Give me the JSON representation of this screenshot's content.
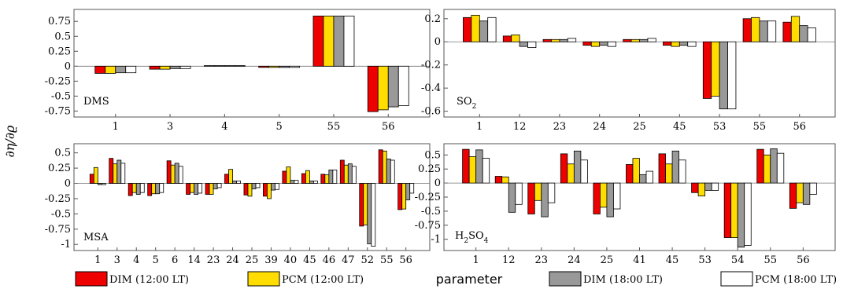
{
  "figure": {
    "ylabel": "∂η/∂ϱ",
    "xlabel": "parameter",
    "legend": [
      {
        "label": "DIM (12:00 LT)",
        "color": "#ee0000"
      },
      {
        "label": "PCM (12:00 LT)",
        "color": "#ffdd00"
      },
      {
        "label": "DIM (18:00 LT)",
        "color": "#999999"
      },
      {
        "label": "PCM (18:00 LT)",
        "color": "#ffffff"
      }
    ]
  },
  "chart_data": [
    {
      "type": "bar",
      "panel_label": "DMS",
      "categories": [
        "1",
        "3",
        "4",
        "5",
        "55",
        "56"
      ],
      "ylim": [
        -0.85,
        0.95
      ],
      "yticks": [
        -0.75,
        -0.5,
        -0.25,
        0,
        0.25,
        0.5,
        0.75
      ],
      "ytick_labels": [
        "-0.75",
        "-0.5",
        "-0.25",
        "0",
        "0.25",
        "0.5",
        "0.75"
      ],
      "series": [
        {
          "name": "DIM (12:00 LT)",
          "values": [
            -0.12,
            -0.05,
            0.01,
            -0.02,
            0.84,
            -0.76
          ]
        },
        {
          "name": "PCM (12:00 LT)",
          "values": [
            -0.12,
            -0.05,
            0.01,
            -0.02,
            0.84,
            -0.73
          ]
        },
        {
          "name": "DIM (18:00 LT)",
          "values": [
            -0.11,
            -0.04,
            0.01,
            -0.02,
            0.84,
            -0.68
          ]
        },
        {
          "name": "PCM (18:00 LT)",
          "values": [
            -0.11,
            -0.04,
            0.01,
            -0.02,
            0.84,
            -0.66
          ]
        }
      ]
    },
    {
      "type": "bar",
      "panel_label": "SO2",
      "categories": [
        "1",
        "12",
        "23",
        "24",
        "25",
        "45",
        "53",
        "55",
        "56"
      ],
      "ylim": [
        -0.65,
        0.28
      ],
      "yticks": [
        -0.6,
        -0.4,
        -0.2,
        0,
        0.2
      ],
      "ytick_labels": [
        "-0.6",
        "-0.4",
        "-0.2",
        "0",
        "0.2"
      ],
      "series": [
        {
          "name": "DIM (12:00 LT)",
          "values": [
            0.21,
            0.05,
            0.02,
            -0.03,
            0.02,
            -0.03,
            -0.49,
            0.2,
            0.17
          ]
        },
        {
          "name": "PCM (12:00 LT)",
          "values": [
            0.23,
            0.06,
            0.02,
            -0.04,
            0.02,
            -0.04,
            -0.47,
            0.21,
            0.22
          ]
        },
        {
          "name": "DIM (18:00 LT)",
          "values": [
            0.18,
            -0.04,
            0.02,
            -0.03,
            0.02,
            -0.03,
            -0.58,
            0.18,
            0.14
          ]
        },
        {
          "name": "PCM (18:00 LT)",
          "values": [
            0.21,
            -0.05,
            0.03,
            -0.04,
            0.03,
            -0.04,
            -0.58,
            0.18,
            0.12
          ]
        }
      ]
    },
    {
      "type": "bar",
      "panel_label": "MSA",
      "categories": [
        "1",
        "3",
        "4",
        "5",
        "6",
        "14",
        "23",
        "24",
        "25",
        "39",
        "40",
        "45",
        "46",
        "47",
        "52",
        "55",
        "56"
      ],
      "ylim": [
        -1.1,
        0.65
      ],
      "yticks": [
        -1,
        -0.75,
        -0.5,
        -0.25,
        0,
        0.25,
        0.5
      ],
      "ytick_labels": [
        "-1",
        "-0.75",
        "-0.5",
        "-0.25",
        "0",
        "0.25",
        "0.5"
      ],
      "series": [
        {
          "name": "DIM (12:00 LT)",
          "values": [
            0.15,
            0.41,
            -0.2,
            -0.2,
            0.37,
            -0.18,
            -0.18,
            0.15,
            -0.19,
            -0.21,
            0.2,
            0.16,
            0.15,
            0.38,
            -0.7,
            0.55,
            -0.43
          ]
        },
        {
          "name": "PCM (12:00 LT)",
          "values": [
            0.26,
            0.32,
            -0.15,
            -0.17,
            0.3,
            -0.15,
            -0.18,
            0.23,
            -0.21,
            -0.25,
            0.27,
            0.21,
            0.14,
            0.3,
            -0.68,
            0.53,
            -0.42
          ]
        },
        {
          "name": "DIM (18:00 LT)",
          "values": [
            -0.02,
            0.38,
            -0.18,
            -0.17,
            0.33,
            -0.18,
            -0.09,
            0.04,
            -0.09,
            -0.11,
            0.05,
            0.04,
            0.22,
            0.32,
            -0.99,
            0.4,
            -0.27
          ]
        },
        {
          "name": "PCM (18:00 LT)",
          "values": [
            -0.02,
            0.33,
            -0.15,
            -0.15,
            0.28,
            -0.16,
            -0.07,
            0.04,
            -0.07,
            -0.1,
            0.05,
            0.04,
            0.22,
            0.28,
            -1.03,
            0.38,
            -0.16
          ]
        }
      ]
    },
    {
      "type": "bar",
      "panel_label": "H2SO4",
      "categories": [
        "1",
        "12",
        "23",
        "24",
        "25",
        "41",
        "45",
        "53",
        "54",
        "55",
        "56"
      ],
      "ylim": [
        -1.2,
        0.7
      ],
      "yticks": [
        -1,
        -0.75,
        -0.5,
        -0.25,
        0,
        0.25,
        0.5
      ],
      "ytick_labels": [
        "-1",
        "-0.75",
        "-0.5",
        "-0.25",
        "0",
        "0.25",
        "0.5"
      ],
      "series": [
        {
          "name": "DIM (12:00 LT)",
          "values": [
            0.6,
            0.12,
            -0.55,
            0.52,
            -0.55,
            0.33,
            0.52,
            -0.17,
            -0.97,
            0.6,
            -0.45
          ]
        },
        {
          "name": "PCM (12:00 LT)",
          "values": [
            0.47,
            0.11,
            -0.31,
            0.34,
            -0.43,
            0.44,
            0.34,
            -0.23,
            -0.97,
            0.5,
            -0.35
          ]
        },
        {
          "name": "DIM (18:00 LT)",
          "values": [
            0.59,
            -0.52,
            -0.6,
            0.57,
            -0.6,
            0.15,
            0.57,
            -0.13,
            -1.14,
            0.61,
            -0.38
          ]
        },
        {
          "name": "PCM (18:00 LT)",
          "values": [
            0.44,
            -0.38,
            -0.35,
            0.41,
            -0.46,
            0.21,
            0.41,
            -0.13,
            -1.11,
            0.53,
            -0.2
          ]
        }
      ]
    }
  ]
}
